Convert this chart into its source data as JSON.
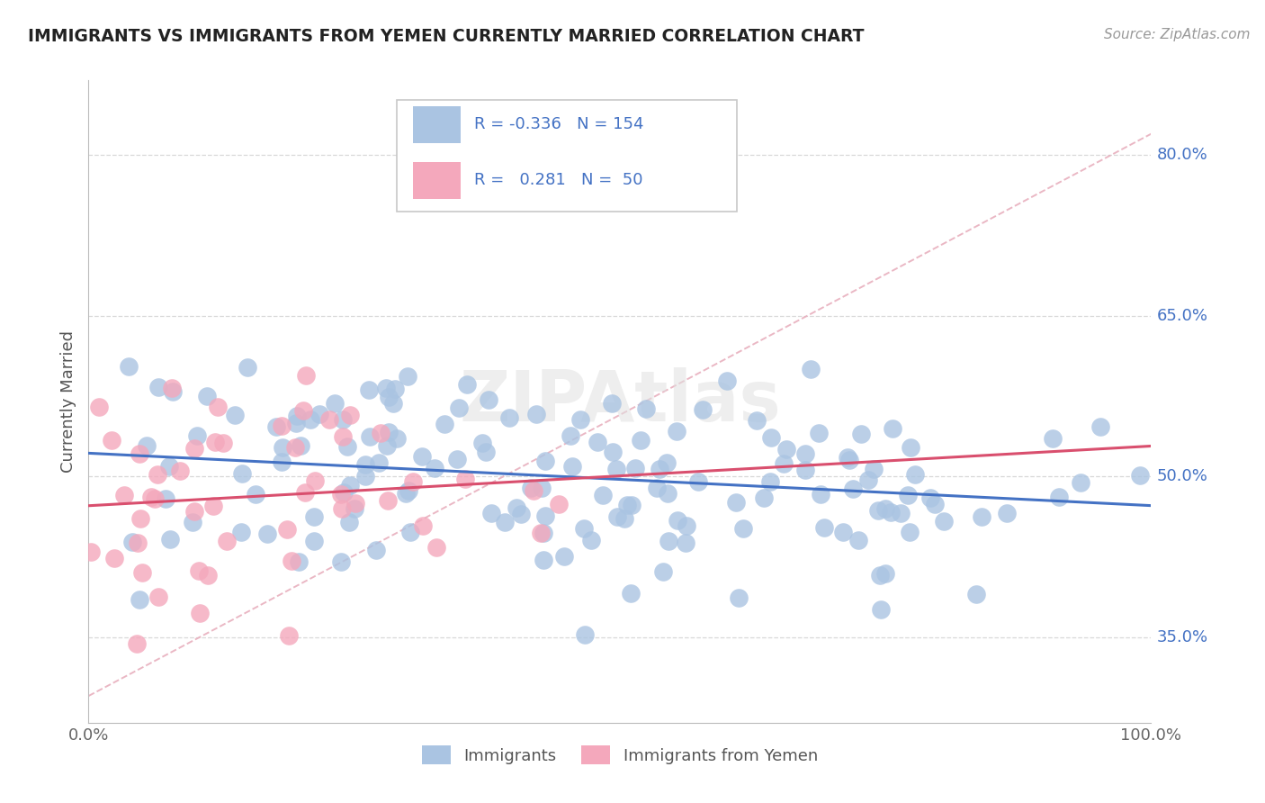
{
  "title": "IMMIGRANTS VS IMMIGRANTS FROM YEMEN CURRENTLY MARRIED CORRELATION CHART",
  "source": "Source: ZipAtlas.com",
  "ylabel": "Currently Married",
  "xlim": [
    0.0,
    1.0
  ],
  "ylim": [
    0.27,
    0.87
  ],
  "yticks": [
    0.35,
    0.5,
    0.65,
    0.8
  ],
  "ytick_labels": [
    "35.0%",
    "50.0%",
    "65.0%",
    "80.0%"
  ],
  "xtick_labels": [
    "0.0%",
    "100.0%"
  ],
  "blue_color": "#aac4e2",
  "blue_line_color": "#4472c4",
  "pink_color": "#f4a8bc",
  "pink_line_color": "#d94f6e",
  "diag_color": "#e8b0be",
  "legend_R1": "-0.336",
  "legend_N1": "154",
  "legend_R2": "0.281",
  "legend_N2": "50",
  "legend_label1": "Immigrants",
  "legend_label2": "Immigrants from Yemen",
  "blue_R": -0.336,
  "blue_N": 154,
  "pink_R": 0.281,
  "pink_N": 50,
  "watermark": "ZIPAtlas",
  "background_color": "#ffffff",
  "grid_color": "#d8d8d8"
}
